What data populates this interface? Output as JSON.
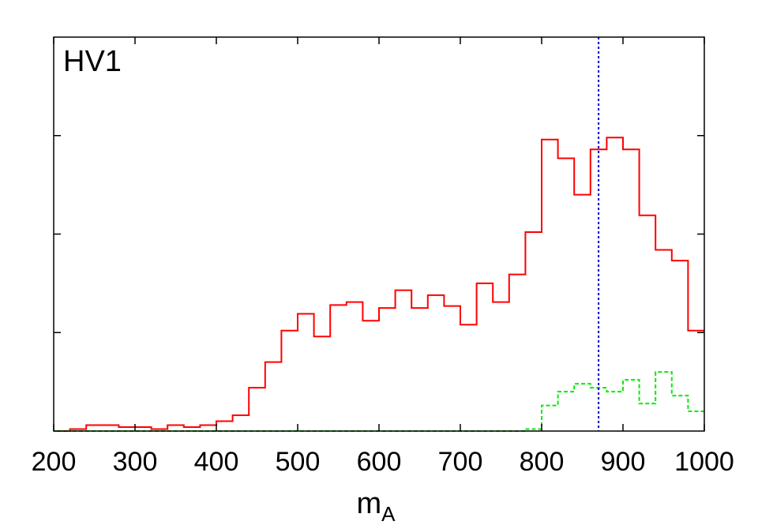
{
  "chart_data": {
    "type": "histogram",
    "panel_label": "HV1",
    "xlabel": {
      "main": "m",
      "sub": "A"
    },
    "ylabel": "",
    "xlim": [
      200,
      1000
    ],
    "ylim": [
      0,
      4
    ],
    "x_ticks": [
      200,
      300,
      400,
      500,
      600,
      700,
      800,
      900,
      1000
    ],
    "x_tick_labels": [
      "200",
      "300",
      "400",
      "500",
      "600",
      "700",
      "800",
      "900",
      "1000"
    ],
    "y_ticks": [
      1,
      2,
      3
    ],
    "grid": false,
    "colors": {
      "series1": "#ff0000",
      "series2": "#00ee00",
      "marker": "#0000cc"
    },
    "bin_edges": [
      200,
      220,
      240,
      260,
      280,
      300,
      320,
      340,
      360,
      380,
      400,
      420,
      440,
      460,
      480,
      500,
      520,
      540,
      560,
      580,
      600,
      620,
      640,
      660,
      680,
      700,
      720,
      740,
      760,
      780,
      800,
      820,
      840,
      860,
      880,
      900,
      920,
      940,
      960,
      980,
      1000
    ],
    "series": [
      {
        "style": "solid",
        "values": [
          0.0,
          0.02,
          0.06,
          0.06,
          0.04,
          0.04,
          0.02,
          0.06,
          0.04,
          0.06,
          0.1,
          0.16,
          0.44,
          0.7,
          1.02,
          1.19,
          0.96,
          1.28,
          1.31,
          1.12,
          1.25,
          1.43,
          1.25,
          1.38,
          1.27,
          1.08,
          1.5,
          1.31,
          1.59,
          2.02,
          2.96,
          2.77,
          2.4,
          2.86,
          2.98,
          2.86,
          2.19,
          1.84,
          1.73,
          1.02
        ]
      },
      {
        "style": "dashed",
        "values": [
          0.0,
          0.0,
          0.0,
          0.0,
          0.0,
          0.0,
          0.0,
          0.0,
          0.0,
          0.0,
          0.0,
          0.0,
          0.0,
          0.0,
          0.0,
          0.0,
          0.0,
          0.0,
          0.0,
          0.0,
          0.0,
          0.0,
          0.0,
          0.0,
          0.0,
          0.0,
          0.0,
          0.0,
          0.0,
          0.02,
          0.26,
          0.4,
          0.48,
          0.44,
          0.4,
          0.52,
          0.28,
          0.6,
          0.36,
          0.2
        ]
      }
    ],
    "vertical_line": {
      "x": 870,
      "style": "dotted"
    }
  }
}
